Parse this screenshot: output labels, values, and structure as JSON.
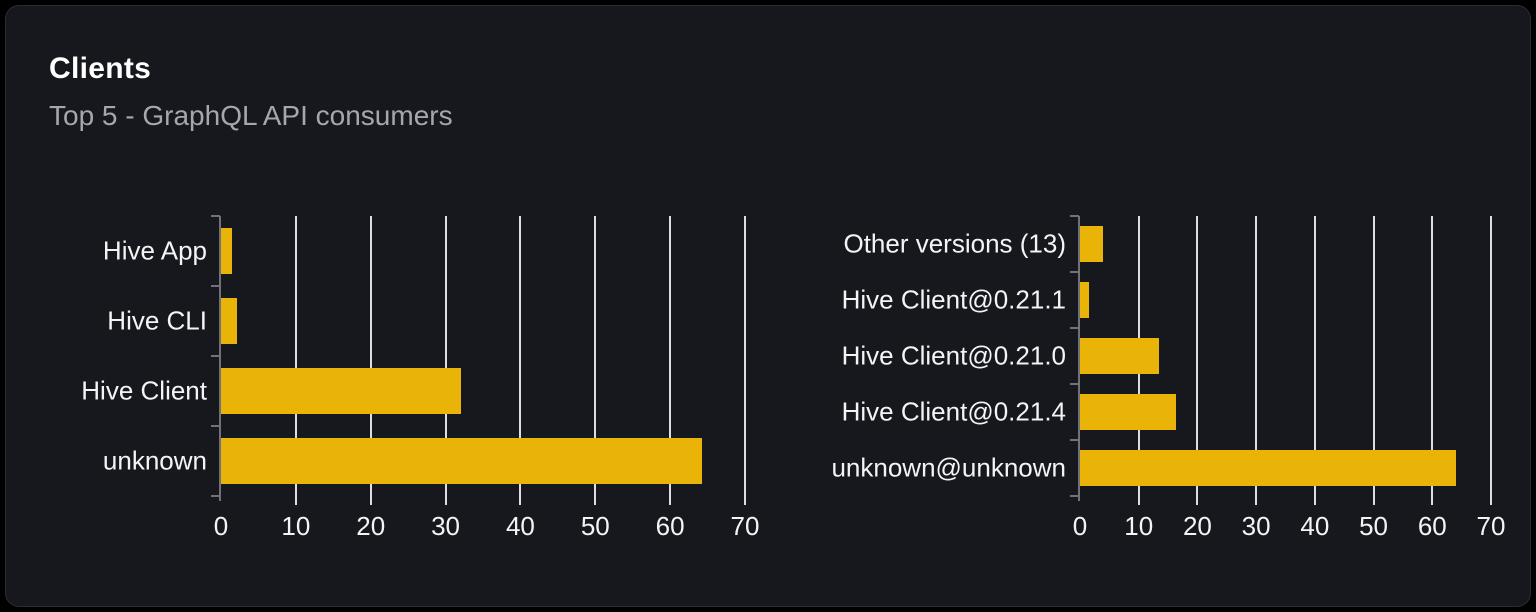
{
  "card": {
    "title": "Clients",
    "subtitle": "Top 5 - GraphQL API consumers"
  },
  "colors": {
    "page_bg": "#000000",
    "card_bg": "#16181e",
    "card_border": "#2a2d34",
    "title": "#ffffff",
    "subtitle": "#a6a6ae",
    "bar": "#eab308",
    "gridline": "#dddde2",
    "axis": "#71717a",
    "label": "#f4f4f5"
  },
  "chart_data": [
    {
      "type": "bar",
      "orientation": "horizontal",
      "title": "",
      "categories_top_to_bottom": [
        "Hive App",
        "Hive CLI",
        "Hive Client",
        "unknown"
      ],
      "values": [
        1.5,
        2.2,
        32,
        64.2
      ],
      "xlim": [
        0,
        70
      ],
      "xticks": [
        0,
        10,
        20,
        30,
        40,
        50,
        60,
        70
      ],
      "grid": true,
      "legend": false,
      "bar_color": "#eab308"
    },
    {
      "type": "bar",
      "orientation": "horizontal",
      "title": "",
      "categories_top_to_bottom": [
        "Other versions (13)",
        "Hive Client@0.21.1",
        "Hive Client@0.21.0",
        "Hive Client@0.21.4",
        "unknown@unknown"
      ],
      "values": [
        3.9,
        1.6,
        13.4,
        16.4,
        64
      ],
      "xlim": [
        0,
        70
      ],
      "xticks": [
        0,
        10,
        20,
        30,
        40,
        50,
        60,
        70
      ],
      "grid": true,
      "legend": false,
      "bar_color": "#eab308"
    }
  ]
}
